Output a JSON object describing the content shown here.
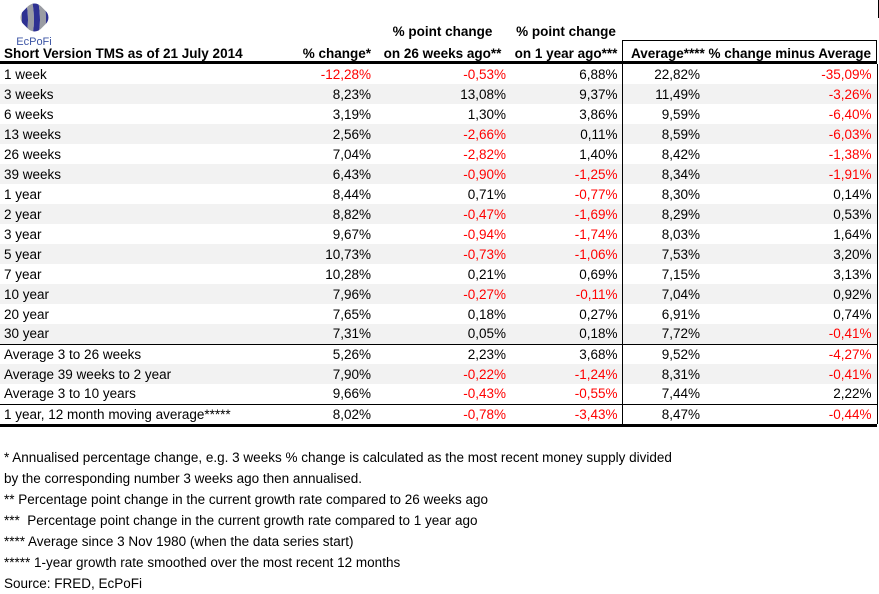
{
  "logo": {
    "name": "EcPoFi",
    "brand_blue": "#2e3192",
    "brand_gray": "#9a9ca3",
    "text_blue": "#3c55a5"
  },
  "table": {
    "title": "Short Version TMS as of 21 July 2014",
    "headers": {
      "pct_change": "% change*",
      "pt26_line1": "% point change",
      "pt26_line2": "on 26 weeks ago**",
      "pt1y_line1": "% point change",
      "pt1y_line2": "on 1 year ago***",
      "average": "Average****",
      "change_minus_average": "% change minus Average"
    },
    "rows": [
      {
        "label": "1 week",
        "stripe": false,
        "section_start": false,
        "values": [
          "-12,28%",
          "-0,53%",
          "6,88%",
          "22,82%",
          "-35,09%"
        ]
      },
      {
        "label": "3 weeks",
        "stripe": true,
        "section_start": false,
        "values": [
          "8,23%",
          "13,08%",
          "9,37%",
          "11,49%",
          "-3,26%"
        ]
      },
      {
        "label": "6 weeks",
        "stripe": false,
        "section_start": false,
        "values": [
          "3,19%",
          "1,30%",
          "3,86%",
          "9,59%",
          "-6,40%"
        ]
      },
      {
        "label": "13 weeks",
        "stripe": true,
        "section_start": false,
        "values": [
          "2,56%",
          "-2,66%",
          "0,11%",
          "8,59%",
          "-6,03%"
        ]
      },
      {
        "label": "26 weeks",
        "stripe": false,
        "section_start": false,
        "values": [
          "7,04%",
          "-2,82%",
          "1,40%",
          "8,42%",
          "-1,38%"
        ]
      },
      {
        "label": "39 weeks",
        "stripe": true,
        "section_start": false,
        "values": [
          "6,43%",
          "-0,90%",
          "-1,25%",
          "8,34%",
          "-1,91%"
        ]
      },
      {
        "label": "1 year",
        "stripe": false,
        "section_start": false,
        "values": [
          "8,44%",
          "0,71%",
          "-0,77%",
          "8,30%",
          "0,14%"
        ]
      },
      {
        "label": "2 year",
        "stripe": true,
        "section_start": false,
        "values": [
          "8,82%",
          "-0,47%",
          "-1,69%",
          "8,29%",
          "0,53%"
        ]
      },
      {
        "label": "3 year",
        "stripe": false,
        "section_start": false,
        "values": [
          "9,67%",
          "-0,94%",
          "-1,74%",
          "8,03%",
          "1,64%"
        ]
      },
      {
        "label": "5 year",
        "stripe": true,
        "section_start": false,
        "values": [
          "10,73%",
          "-0,73%",
          "-1,06%",
          "7,53%",
          "3,20%"
        ]
      },
      {
        "label": "7 year",
        "stripe": false,
        "section_start": false,
        "values": [
          "10,28%",
          "0,21%",
          "0,69%",
          "7,15%",
          "3,13%"
        ]
      },
      {
        "label": "10 year",
        "stripe": true,
        "section_start": false,
        "values": [
          "7,96%",
          "-0,27%",
          "-0,11%",
          "7,04%",
          "0,92%"
        ]
      },
      {
        "label": "20 year",
        "stripe": false,
        "section_start": false,
        "values": [
          "7,65%",
          "0,18%",
          "0,27%",
          "6,91%",
          "0,74%"
        ]
      },
      {
        "label": "30 year",
        "stripe": true,
        "section_start": false,
        "values": [
          "7,31%",
          "0,05%",
          "0,18%",
          "7,72%",
          "-0,41%"
        ]
      },
      {
        "label": "Average 3 to 26 weeks",
        "stripe": false,
        "section_start": true,
        "values": [
          "5,26%",
          "2,23%",
          "3,68%",
          "9,52%",
          "-4,27%"
        ]
      },
      {
        "label": "Average 39 weeks to 2 year",
        "stripe": true,
        "section_start": false,
        "values": [
          "7,90%",
          "-0,22%",
          "-1,24%",
          "8,31%",
          "-0,41%"
        ]
      },
      {
        "label": "Average 3 to 10 years",
        "stripe": false,
        "section_start": false,
        "values": [
          "9,66%",
          "-0,43%",
          "-0,55%",
          "7,44%",
          "2,22%"
        ]
      },
      {
        "label": "1 year, 12 month moving average*****",
        "stripe": false,
        "section_start": true,
        "values": [
          "8,02%",
          "-0,78%",
          "-3,43%",
          "8,47%",
          "-0,44%"
        ]
      }
    ]
  },
  "footnotes": [
    "* Annualised percentage change, e.g. 3 weeks % change is calculated as the most recent money supply divided",
    "by the corresponding number 3 weeks ago then annualised.",
    "** Percentage point change in the current growth rate compared to 26 weeks ago",
    "***  Percentage point change in the current growth rate compared to 1 year ago",
    "**** Average since 3 Nov 1980 (when the data series start)",
    "***** 1-year growth rate smoothed over the most recent 12 months",
    "Source: FRED, EcPoFi"
  ],
  "colors": {
    "negative_value": "#ff0000",
    "row_stripe": "#f2f2f2",
    "border": "#000000"
  }
}
